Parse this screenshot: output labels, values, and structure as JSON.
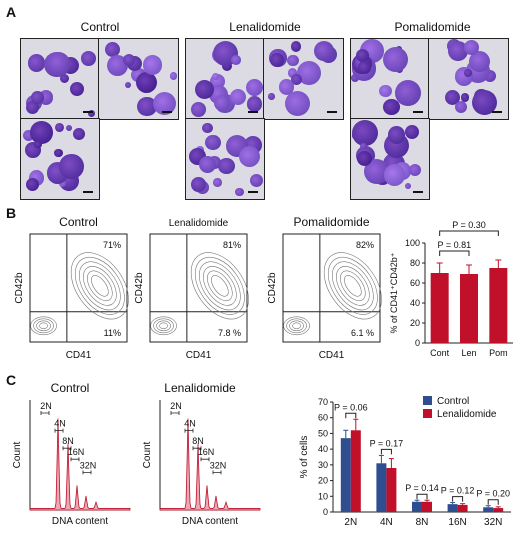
{
  "panelA": {
    "letter": "A",
    "groups": [
      {
        "title": "Control"
      },
      {
        "title": "Lenalidomide"
      },
      {
        "title": "Pomalidomide"
      }
    ]
  },
  "panelB": {
    "letter": "B",
    "flow": [
      {
        "title": "Control",
        "q_upper_right": "71%",
        "q_lower_right": "11%",
        "ylabel": "CD42b",
        "xlabel": "CD41"
      },
      {
        "title": "Lenalidomide",
        "q_upper_right": "81%",
        "q_lower_right": "7.8 %",
        "ylabel": "CD42b",
        "xlabel": "CD41"
      },
      {
        "title": "Pomalidomide",
        "q_upper_right": "82%",
        "q_lower_right": "6.1 %",
        "ylabel": "CD42b",
        "xlabel": "CD41"
      }
    ]
  },
  "panelC": {
    "letter": "C",
    "hist": [
      {
        "title": "Control",
        "ylabel": "Count",
        "xlabel": "DNA content",
        "ploidy": [
          "2N",
          "4N",
          "8N",
          "16N",
          "32N"
        ]
      },
      {
        "title": "Lenalidomide",
        "ylabel": "Count",
        "xlabel": "DNA content",
        "ploidy": [
          "2N",
          "4N",
          "8N",
          "16N",
          "32N"
        ]
      }
    ]
  },
  "chart_data": [
    {
      "type": "bar",
      "categories": [
        "Cont",
        "Len",
        "Pom"
      ],
      "values": [
        70,
        69,
        75
      ],
      "errors": [
        10,
        9,
        8
      ],
      "ylabel": "% of CD41⁺CD42b⁺",
      "ylim": [
        0,
        100
      ],
      "yticks": [
        0,
        20,
        40,
        60,
        80,
        100
      ],
      "annotations": [
        {
          "text": "P = 0.81",
          "between": [
            "Cont",
            "Len"
          ]
        },
        {
          "text": "P = 0.30",
          "between": [
            "Cont",
            "Pom"
          ]
        }
      ],
      "color": "#c0102a"
    },
    {
      "type": "bar",
      "categories": [
        "2N",
        "4N",
        "8N",
        "16N",
        "32N"
      ],
      "series": [
        {
          "name": "Control",
          "values": [
            47,
            31,
            6.5,
            5,
            3
          ],
          "errors": [
            5,
            5,
            1,
            1,
            1
          ],
          "color": "#2f4e8f"
        },
        {
          "name": "Lenalidomide",
          "values": [
            52,
            28,
            6.5,
            4.5,
            2.5
          ],
          "errors": [
            7,
            6,
            1,
            0.8,
            0.8
          ],
          "color": "#c0102a"
        }
      ],
      "ylabel": "% of cells",
      "ylim": [
        0,
        70
      ],
      "yticks": [
        0,
        10,
        20,
        30,
        40,
        50,
        60,
        70
      ],
      "annotations": [
        "P = 0.06",
        "P = 0.17",
        "P = 0.14",
        "P = 0.12",
        "P = 0.20"
      ],
      "legend": "top-right"
    }
  ]
}
